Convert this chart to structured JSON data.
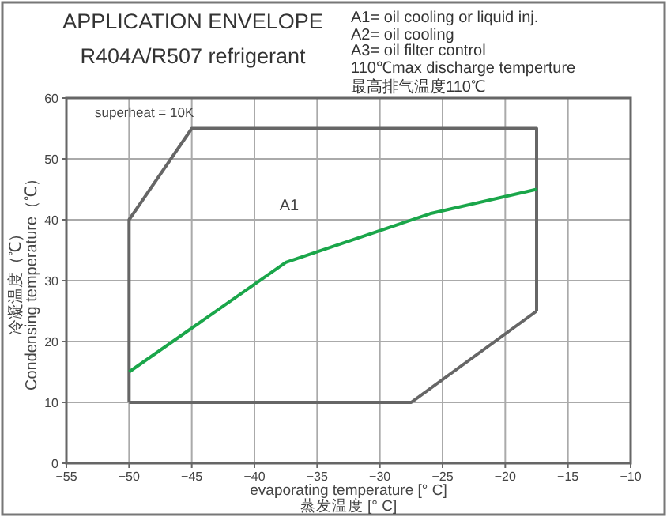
{
  "chart_data": {
    "type": "line",
    "title": "APPLICATION ENVELOPE",
    "subtitle": "R404A/R507  refrigerant",
    "xlabel": "evaporating temperature [° C]\n蒸发温度 [° C]",
    "ylabel": "冷凝温度（℃）\nCondensing temperature（℃）",
    "annotations": [
      "A1= oil cooling or liquid inj.",
      "A2= oil cooling",
      "A3= oil filter control",
      "110℃max discharge temperture",
      "最高排气温度110℃",
      "superheat = 10K",
      "A1"
    ],
    "series": [
      {
        "color": "#666666",
        "x": [
          -50,
          -50,
          -45,
          -17.5,
          -17.5
        ],
        "values": [
          10,
          40,
          55,
          55,
          25
        ]
      },
      {
        "color": "#666666",
        "x": [
          -50,
          -27.5,
          -17.5
        ],
        "values": [
          10,
          10,
          25
        ]
      },
      {
        "color": "#1aa64a",
        "x": [
          -50,
          -37.5,
          -26,
          -17.5
        ],
        "values": [
          15,
          33,
          41,
          45
        ]
      }
    ],
    "xlim": [
      -55,
      -10
    ],
    "ylim": [
      0,
      60
    ],
    "xticks": [
      -55,
      -50,
      -45,
      -40,
      -35,
      -30,
      -25,
      -20,
      -15,
      -10
    ],
    "yticks": [
      0,
      10,
      20,
      30,
      40,
      50,
      60
    ],
    "grid": true,
    "marker": "none",
    "line_style": "solid"
  }
}
